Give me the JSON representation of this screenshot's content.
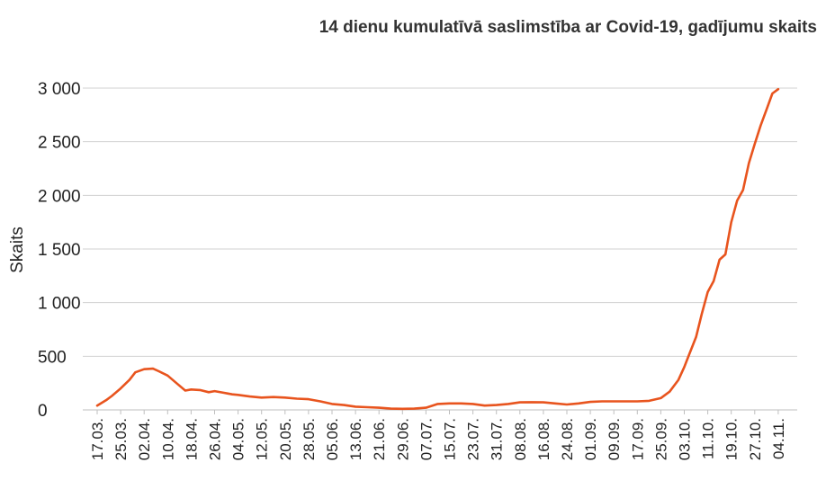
{
  "chart_data": {
    "type": "line",
    "title": "14 dienu kumulatīvā saslimstība ar Covid-19, gadījumu skaits",
    "xlabel": "",
    "ylabel": "Skaits",
    "ylim": [
      0,
      3000
    ],
    "y_ticks": [
      "0",
      "500",
      "1 000",
      "1 500",
      "2 000",
      "2 500",
      "3 000"
    ],
    "y_tick_values": [
      0,
      500,
      1000,
      1500,
      2000,
      2500,
      3000
    ],
    "grid": true,
    "legend": "none",
    "x_tick_labels": [
      "17.03.",
      "25.03.",
      "02.04.",
      "10.04.",
      "18.04.",
      "26.04.",
      "04.05.",
      "12.05.",
      "20.05.",
      "28.05.",
      "05.06.",
      "13.06.",
      "21.06.",
      "29.06.",
      "07.07.",
      "15.07.",
      "23.07.",
      "31.07.",
      "08.08.",
      "16.08.",
      "24.08.",
      "01.09.",
      "09.09.",
      "17.09.",
      "25.09.",
      "03.10.",
      "11.10.",
      "19.10.",
      "27.10.",
      "04.11."
    ],
    "series": [
      {
        "color": "#e8541e",
        "x": [
          "17.03.",
          "20.03.",
          "22.03.",
          "25.03.",
          "28.03.",
          "30.03.",
          "02.04.",
          "05.04.",
          "07.04.",
          "10.04.",
          "13.04.",
          "16.04.",
          "18.04.",
          "21.04.",
          "24.04.",
          "26.04.",
          "29.04.",
          "02.05.",
          "04.05.",
          "08.05.",
          "12.05.",
          "16.05.",
          "20.05.",
          "24.05.",
          "28.05.",
          "01.06.",
          "05.06.",
          "09.06.",
          "13.06.",
          "17.06.",
          "21.06.",
          "25.06.",
          "29.06.",
          "03.07.",
          "07.07.",
          "11.07.",
          "15.07.",
          "19.07.",
          "23.07.",
          "27.07.",
          "31.07.",
          "04.08.",
          "08.08.",
          "12.08.",
          "16.08.",
          "20.08.",
          "24.08.",
          "28.08.",
          "01.09.",
          "05.09.",
          "09.09.",
          "13.09.",
          "17.09.",
          "21.09.",
          "25.09.",
          "28.09.",
          "01.10.",
          "03.10.",
          "05.10.",
          "07.10.",
          "09.10.",
          "11.10.",
          "13.10.",
          "15.10.",
          "17.10.",
          "19.10.",
          "21.10.",
          "23.10.",
          "25.10.",
          "27.10.",
          "29.10.",
          "31.10.",
          "02.11.",
          "04.11."
        ],
        "values": [
          40,
          90,
          130,
          200,
          280,
          350,
          380,
          385,
          360,
          320,
          250,
          180,
          190,
          185,
          165,
          175,
          160,
          145,
          140,
          125,
          115,
          120,
          115,
          105,
          100,
          80,
          55,
          45,
          30,
          25,
          20,
          12,
          10,
          12,
          20,
          55,
          60,
          60,
          55,
          40,
          45,
          55,
          70,
          72,
          70,
          60,
          50,
          60,
          75,
          80,
          80,
          80,
          80,
          85,
          110,
          170,
          280,
          400,
          540,
          680,
          900,
          1100,
          1200,
          1400,
          1450,
          1750,
          1950,
          2050,
          2300,
          2480,
          2650,
          2800,
          2950,
          2990
        ]
      }
    ]
  }
}
